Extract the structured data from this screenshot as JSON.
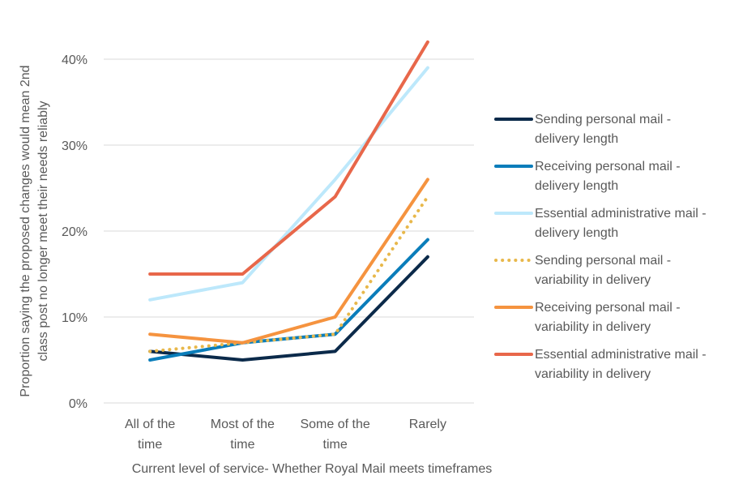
{
  "chart_data": {
    "type": "line",
    "title": "",
    "xlabel": "Current level of service- Whether Royal Mail meets timeframes",
    "ylabel": [
      "Proportion saying the proposed changes would mean 2nd",
      "class post no longer meet their needs reliably"
    ],
    "categories": [
      [
        "All of the",
        "time"
      ],
      [
        "Most of the",
        "time"
      ],
      [
        "Some of the",
        "time"
      ],
      [
        "Rarely"
      ]
    ],
    "ylim": [
      0,
      40
    ],
    "yticks": [
      0,
      10,
      20,
      30,
      40
    ],
    "ytick_labels": [
      "0%",
      "10%",
      "20%",
      "30%",
      "40%"
    ],
    "grid": true,
    "legend_placement": "right",
    "series": [
      {
        "name": [
          "Sending personal mail -",
          "delivery length"
        ],
        "values": [
          6,
          5,
          6,
          17
        ],
        "color": "#0b2a4a",
        "dash": false
      },
      {
        "name": [
          "Receiving personal mail -",
          "delivery length"
        ],
        "values": [
          5,
          7,
          8,
          19
        ],
        "color": "#0a7dba",
        "dash": false
      },
      {
        "name": [
          "Essential administrative mail -",
          "delivery length"
        ],
        "values": [
          12,
          14,
          26,
          39
        ],
        "color": "#bde8fb",
        "dash": false
      },
      {
        "name": [
          "Sending personal mail -",
          "variability in delivery"
        ],
        "values": [
          6,
          7,
          8,
          24
        ],
        "color": "#e8b84b",
        "dash": true
      },
      {
        "name": [
          "Receiving personal mail -",
          "variability in delivery"
        ],
        "values": [
          8,
          7,
          10,
          26
        ],
        "color": "#f5933f",
        "dash": false
      },
      {
        "name": [
          "Essential administrative mail -",
          "variability in delivery"
        ],
        "values": [
          15,
          15,
          24,
          42
        ],
        "color": "#e8674a",
        "dash": false
      }
    ]
  }
}
